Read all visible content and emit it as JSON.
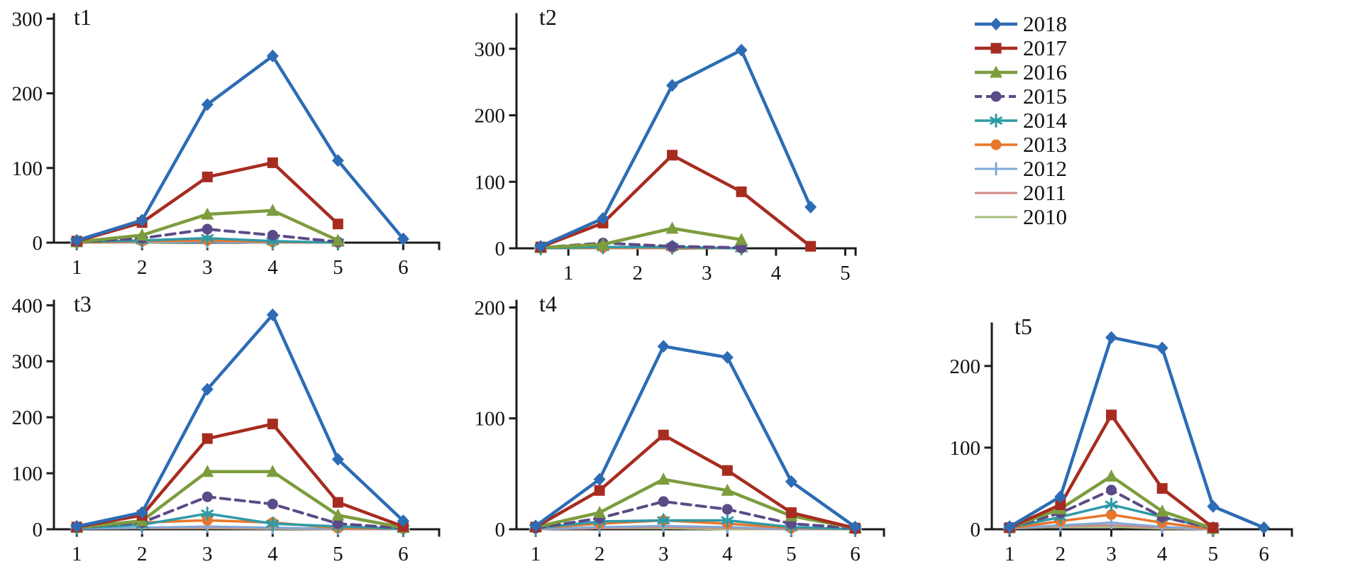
{
  "page": {
    "background": "#ffffff"
  },
  "legend": {
    "items": [
      {
        "label": "2018",
        "color": "#2d6cb5",
        "marker": "diamond",
        "dash": "solid",
        "width": 4.5
      },
      {
        "label": "2017",
        "color": "#a72c20",
        "marker": "square",
        "dash": "solid",
        "width": 4.5
      },
      {
        "label": "2016",
        "color": "#7d9c3e",
        "marker": "triangle",
        "dash": "solid",
        "width": 4.5
      },
      {
        "label": "2015",
        "color": "#5b4a87",
        "marker": "circle",
        "dash": "dashed",
        "width": 4
      },
      {
        "label": "2014",
        "color": "#2f9aa6",
        "marker": "asterisk",
        "dash": "solid",
        "width": 3.5
      },
      {
        "label": "2013",
        "color": "#e8762b",
        "marker": "circle",
        "dash": "solid",
        "width": 3.5
      },
      {
        "label": "2012",
        "color": "#7fa8d9",
        "marker": "plus",
        "dash": "solid",
        "width": 3
      },
      {
        "label": "2011",
        "color": "#cf8a87",
        "marker": "none",
        "dash": "solid",
        "width": 3
      },
      {
        "label": "2010",
        "color": "#a8c07c",
        "marker": "none",
        "dash": "solid",
        "width": 3
      }
    ]
  },
  "chart_data": [
    {
      "id": "t1",
      "type": "line",
      "title": "t1",
      "xlim": [
        0.65,
        6.55
      ],
      "ylim": [
        0,
        306
      ],
      "xticks": [
        1,
        2,
        3,
        4,
        5,
        6
      ],
      "yticks": [
        0,
        100,
        200,
        300
      ],
      "x": [
        1,
        2,
        3,
        4,
        5,
        6
      ],
      "series": [
        {
          "name": "2018",
          "values": [
            3,
            30,
            185,
            250,
            110,
            5
          ]
        },
        {
          "name": "2017",
          "values": [
            2,
            27,
            88,
            107,
            25,
            null
          ]
        },
        {
          "name": "2016",
          "values": [
            1,
            10,
            38,
            43,
            3,
            null
          ]
        },
        {
          "name": "2015",
          "values": [
            1,
            6,
            18,
            10,
            1,
            null
          ]
        },
        {
          "name": "2014",
          "values": [
            1,
            3,
            6,
            2,
            0,
            null
          ]
        },
        {
          "name": "2013",
          "values": [
            0,
            2,
            3,
            1,
            0,
            null
          ]
        },
        {
          "name": "2012",
          "values": [
            0,
            1,
            1,
            0,
            0,
            null
          ]
        },
        {
          "name": "2011",
          "values": [
            0,
            1,
            1,
            0,
            0,
            null
          ]
        },
        {
          "name": "2010",
          "values": [
            0,
            0,
            1,
            0,
            0,
            null
          ]
        }
      ]
    },
    {
      "id": "t2",
      "type": "line",
      "title": "t2",
      "xlim": [
        0.25,
        5.15
      ],
      "ylim": [
        0,
        352
      ],
      "xticks": [
        1,
        2,
        3,
        4,
        5
      ],
      "yticks": [
        0,
        100,
        200,
        300
      ],
      "x": [
        0.6,
        1.5,
        2.5,
        3.5,
        4.5
      ],
      "series": [
        {
          "name": "2018",
          "values": [
            3,
            45,
            245,
            298,
            62
          ]
        },
        {
          "name": "2017",
          "values": [
            2,
            38,
            140,
            85,
            3
          ]
        },
        {
          "name": "2016",
          "values": [
            1,
            6,
            30,
            13,
            null
          ]
        },
        {
          "name": "2015",
          "values": [
            1,
            8,
            3,
            1,
            null
          ]
        },
        {
          "name": "2014",
          "values": [
            0,
            2,
            2,
            0,
            null
          ]
        },
        {
          "name": "2013",
          "values": [
            0,
            1,
            1,
            0,
            null
          ]
        },
        {
          "name": "2012",
          "values": [
            0,
            1,
            0,
            null,
            null
          ]
        },
        {
          "name": "2011",
          "values": [
            0,
            0,
            0,
            null,
            null
          ]
        },
        {
          "name": "2010",
          "values": [
            0,
            0,
            0,
            null,
            null
          ]
        }
      ]
    },
    {
      "id": "t3",
      "type": "line",
      "title": "t3",
      "xlim": [
        0.65,
        6.55
      ],
      "ylim": [
        0,
        408
      ],
      "xticks": [
        1,
        2,
        3,
        4,
        5,
        6
      ],
      "yticks": [
        0,
        100,
        200,
        300,
        400
      ],
      "x": [
        1,
        2,
        3,
        4,
        5,
        6
      ],
      "series": [
        {
          "name": "2018",
          "values": [
            5,
            30,
            250,
            383,
            125,
            15
          ]
        },
        {
          "name": "2017",
          "values": [
            4,
            25,
            162,
            188,
            48,
            5
          ]
        },
        {
          "name": "2016",
          "values": [
            3,
            15,
            103,
            103,
            25,
            3
          ]
        },
        {
          "name": "2015",
          "values": [
            3,
            12,
            58,
            45,
            10,
            2
          ]
        },
        {
          "name": "2014",
          "values": [
            2,
            8,
            28,
            10,
            5,
            1
          ]
        },
        {
          "name": "2013",
          "values": [
            2,
            12,
            16,
            12,
            2,
            1
          ]
        },
        {
          "name": "2012",
          "values": [
            1,
            3,
            5,
            3,
            1,
            0
          ]
        },
        {
          "name": "2011",
          "values": [
            1,
            2,
            3,
            2,
            0,
            0
          ]
        },
        {
          "name": "2010",
          "values": [
            1,
            2,
            2,
            1,
            0,
            0
          ]
        }
      ]
    },
    {
      "id": "t4",
      "type": "line",
      "title": "t4",
      "xlim": [
        0.7,
        6.45
      ],
      "ylim": [
        0,
        206
      ],
      "xticks": [
        1,
        2,
        3,
        4,
        5,
        6
      ],
      "yticks": [
        0,
        100,
        200
      ],
      "x": [
        1,
        2,
        3,
        4,
        5,
        6
      ],
      "series": [
        {
          "name": "2018",
          "values": [
            3,
            45,
            165,
            155,
            43,
            2
          ]
        },
        {
          "name": "2017",
          "values": [
            2,
            35,
            85,
            53,
            15,
            1
          ]
        },
        {
          "name": "2016",
          "values": [
            2,
            15,
            45,
            35,
            12,
            1
          ]
        },
        {
          "name": "2015",
          "values": [
            1,
            10,
            25,
            18,
            5,
            1
          ]
        },
        {
          "name": "2014",
          "values": [
            1,
            7,
            8,
            8,
            2,
            0
          ]
        },
        {
          "name": "2013",
          "values": [
            1,
            5,
            8,
            5,
            1,
            0
          ]
        },
        {
          "name": "2012",
          "values": [
            0,
            2,
            3,
            2,
            0,
            0
          ]
        },
        {
          "name": "2011",
          "values": [
            0,
            1,
            2,
            1,
            0,
            0
          ]
        },
        {
          "name": "2010",
          "values": [
            0,
            1,
            1,
            0,
            0,
            0
          ]
        }
      ]
    },
    {
      "id": "t5",
      "type": "line",
      "title": "t5",
      "xlim": [
        0.65,
        6.55
      ],
      "ylim": [
        0,
        252
      ],
      "xticks": [
        1,
        2,
        3,
        4,
        5,
        6
      ],
      "yticks": [
        0,
        100,
        200
      ],
      "x": [
        1,
        2,
        3,
        4,
        5,
        6
      ],
      "series": [
        {
          "name": "2018",
          "values": [
            3,
            40,
            235,
            222,
            28,
            2
          ]
        },
        {
          "name": "2017",
          "values": [
            2,
            30,
            140,
            50,
            2,
            null
          ]
        },
        {
          "name": "2016",
          "values": [
            2,
            25,
            65,
            22,
            1,
            null
          ]
        },
        {
          "name": "2015",
          "values": [
            2,
            20,
            48,
            15,
            1,
            null
          ]
        },
        {
          "name": "2014",
          "values": [
            2,
            15,
            30,
            15,
            1,
            null
          ]
        },
        {
          "name": "2013",
          "values": [
            1,
            10,
            18,
            8,
            0,
            null
          ]
        },
        {
          "name": "2012",
          "values": [
            1,
            5,
            8,
            3,
            0,
            null
          ]
        },
        {
          "name": "2011",
          "values": [
            1,
            4,
            5,
            2,
            0,
            null
          ]
        },
        {
          "name": "2010",
          "values": [
            1,
            3,
            3,
            1,
            0,
            null
          ]
        }
      ]
    }
  ]
}
